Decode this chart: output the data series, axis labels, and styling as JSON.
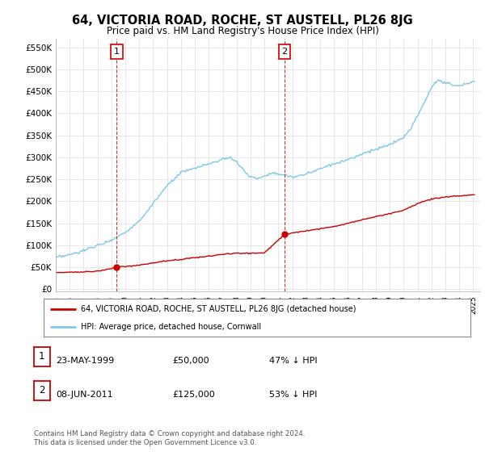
{
  "title": "64, VICTORIA ROAD, ROCHE, ST AUSTELL, PL26 8JG",
  "subtitle": "Price paid vs. HM Land Registry's House Price Index (HPI)",
  "ylabel_ticks": [
    "£0",
    "£50K",
    "£100K",
    "£150K",
    "£200K",
    "£250K",
    "£300K",
    "£350K",
    "£400K",
    "£450K",
    "£500K",
    "£550K"
  ],
  "ytick_values": [
    0,
    50000,
    100000,
    150000,
    200000,
    250000,
    300000,
    350000,
    400000,
    450000,
    500000,
    550000
  ],
  "xlim": [
    1995.0,
    2025.5
  ],
  "ylim": [
    -5000,
    570000
  ],
  "hpi_color": "#7ec8e8",
  "price_color": "#cc0000",
  "point1_x": 1999.38,
  "point1_y": 50000,
  "point2_x": 2011.44,
  "point2_y": 125000,
  "legend_line1": "64, VICTORIA ROAD, ROCHE, ST AUSTELL, PL26 8JG (detached house)",
  "legend_line2": "HPI: Average price, detached house, Cornwall",
  "table_row1": [
    "1",
    "23-MAY-1999",
    "£50,000",
    "47% ↓ HPI"
  ],
  "table_row2": [
    "2",
    "08-JUN-2011",
    "£125,000",
    "53% ↓ HPI"
  ],
  "footer": "Contains HM Land Registry data © Crown copyright and database right 2024.\nThis data is licensed under the Open Government Licence v3.0.",
  "background_color": "#ffffff",
  "grid_color": "#dddddd",
  "hpi_key_points": [
    [
      1995.0,
      72000
    ],
    [
      1996.0,
      78000
    ],
    [
      1997.0,
      88000
    ],
    [
      1998.0,
      100000
    ],
    [
      1999.0,
      112000
    ],
    [
      2000.0,
      130000
    ],
    [
      2001.0,
      155000
    ],
    [
      2002.0,
      195000
    ],
    [
      2003.0,
      235000
    ],
    [
      2004.0,
      265000
    ],
    [
      2005.0,
      275000
    ],
    [
      2006.0,
      285000
    ],
    [
      2007.0,
      295000
    ],
    [
      2007.5,
      300000
    ],
    [
      2008.0,
      290000
    ],
    [
      2008.5,
      270000
    ],
    [
      2009.0,
      255000
    ],
    [
      2009.5,
      252000
    ],
    [
      2010.0,
      258000
    ],
    [
      2010.5,
      265000
    ],
    [
      2011.0,
      262000
    ],
    [
      2011.5,
      258000
    ],
    [
      2012.0,
      255000
    ],
    [
      2012.5,
      258000
    ],
    [
      2013.0,
      262000
    ],
    [
      2013.5,
      268000
    ],
    [
      2014.0,
      275000
    ],
    [
      2015.0,
      285000
    ],
    [
      2016.0,
      295000
    ],
    [
      2017.0,
      308000
    ],
    [
      2018.0,
      318000
    ],
    [
      2019.0,
      328000
    ],
    [
      2020.0,
      345000
    ],
    [
      2020.5,
      365000
    ],
    [
      2021.0,
      395000
    ],
    [
      2021.5,
      425000
    ],
    [
      2022.0,
      460000
    ],
    [
      2022.5,
      475000
    ],
    [
      2023.0,
      470000
    ],
    [
      2023.5,
      465000
    ],
    [
      2024.0,
      462000
    ],
    [
      2024.5,
      468000
    ],
    [
      2025.0,
      472000
    ]
  ],
  "price_key_points": [
    [
      1995.0,
      38000
    ],
    [
      1996.0,
      39000
    ],
    [
      1997.0,
      40000
    ],
    [
      1998.0,
      41000
    ],
    [
      1999.38,
      50000
    ],
    [
      1999.5,
      50500
    ],
    [
      2000.0,
      52000
    ],
    [
      2001.0,
      55000
    ],
    [
      2002.0,
      60000
    ],
    [
      2003.0,
      65000
    ],
    [
      2004.0,
      68000
    ],
    [
      2005.0,
      72000
    ],
    [
      2006.0,
      75000
    ],
    [
      2007.0,
      80000
    ],
    [
      2008.0,
      82000
    ],
    [
      2009.0,
      82000
    ],
    [
      2010.0,
      83000
    ],
    [
      2011.44,
      125000
    ],
    [
      2011.5,
      125500
    ],
    [
      2012.0,
      128000
    ],
    [
      2013.0,
      133000
    ],
    [
      2014.0,
      138000
    ],
    [
      2015.0,
      143000
    ],
    [
      2016.0,
      150000
    ],
    [
      2017.0,
      158000
    ],
    [
      2018.0,
      165000
    ],
    [
      2019.0,
      172000
    ],
    [
      2020.0,
      180000
    ],
    [
      2021.0,
      195000
    ],
    [
      2022.0,
      205000
    ],
    [
      2023.0,
      210000
    ],
    [
      2024.0,
      212000
    ],
    [
      2025.0,
      215000
    ]
  ]
}
